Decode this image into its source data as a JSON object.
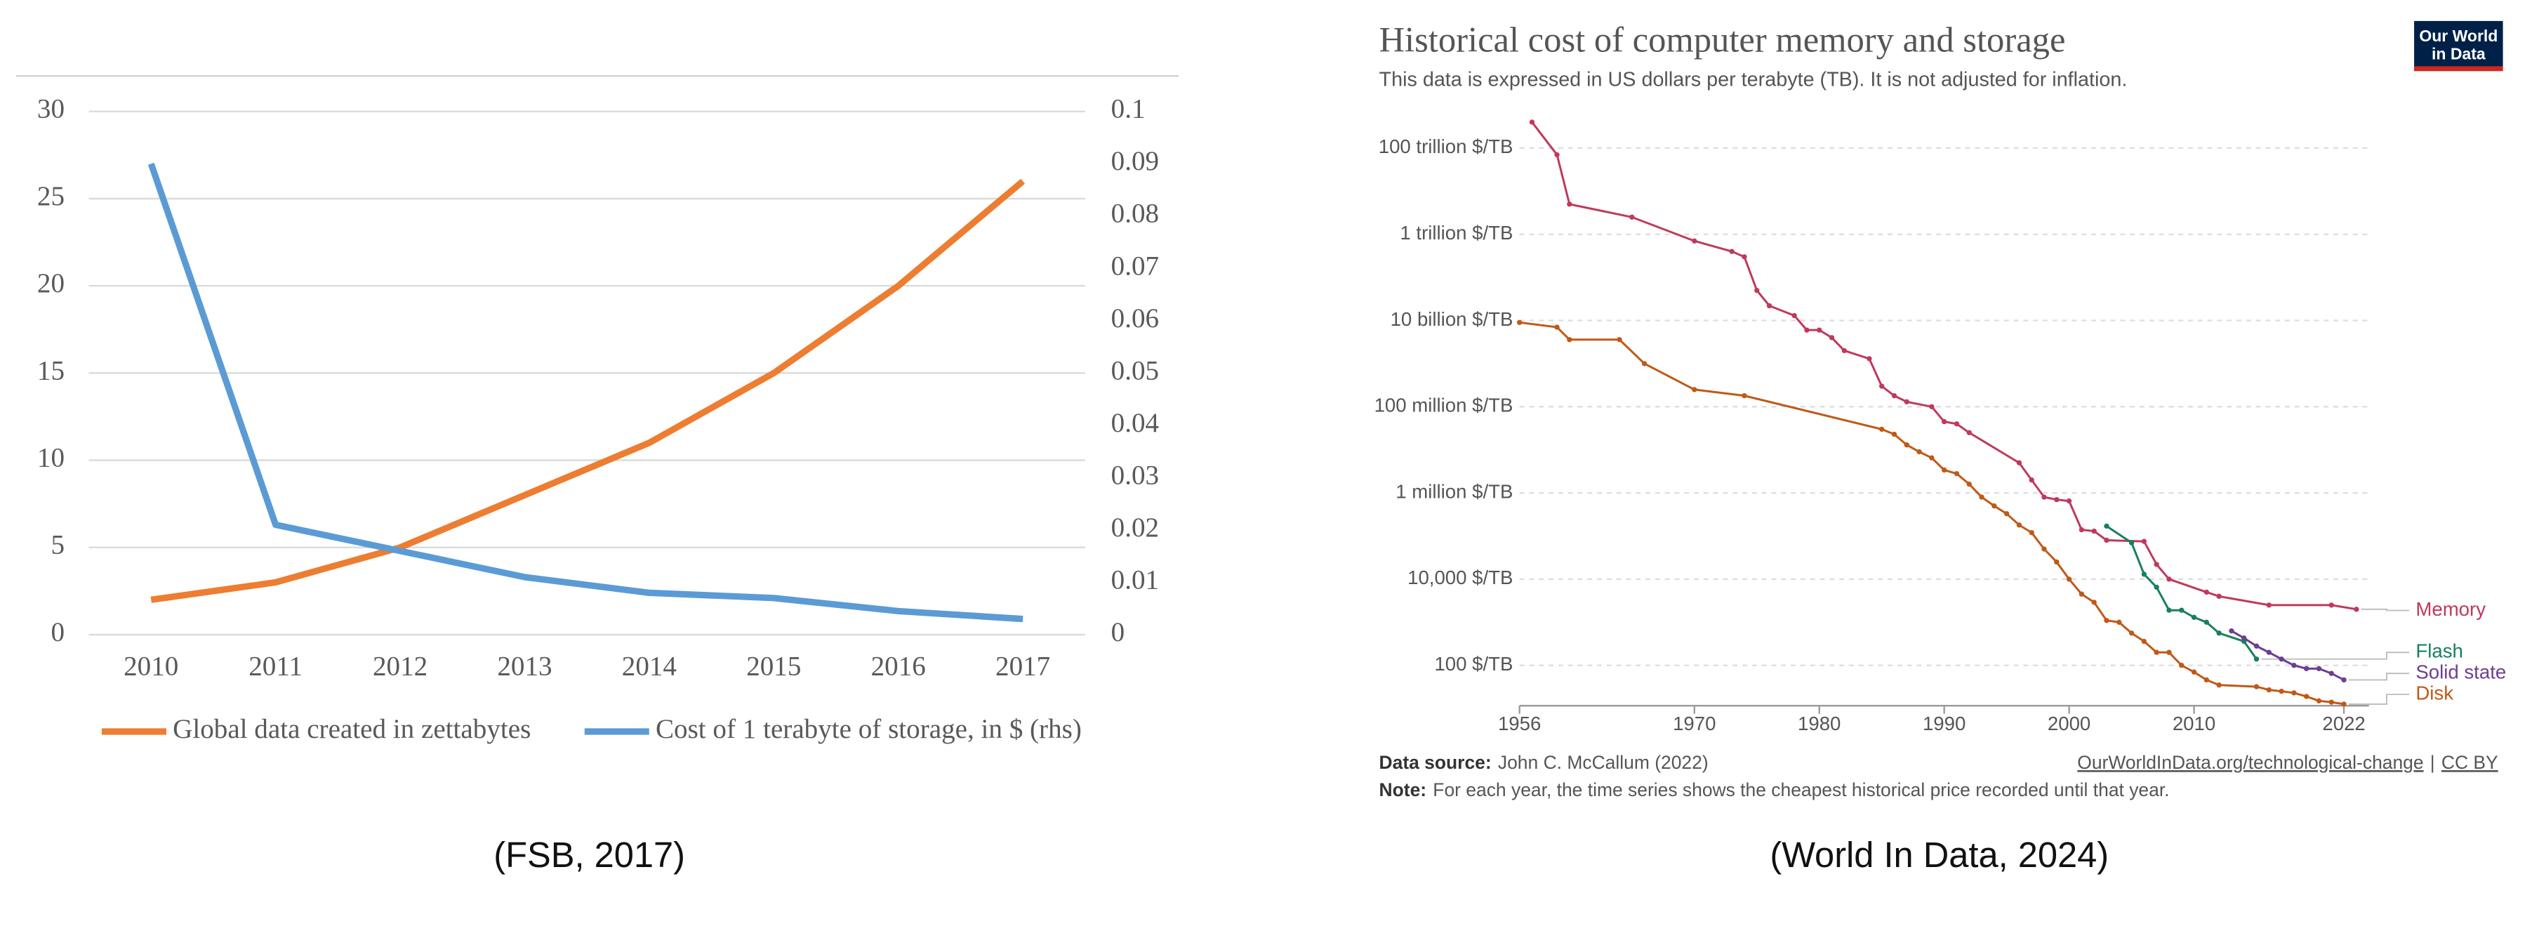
{
  "chart_data": [
    {
      "type": "line",
      "caption": "(FSB, 2017)",
      "categories": [
        "2010",
        "2011",
        "2012",
        "2013",
        "2014",
        "2015",
        "2016",
        "2017"
      ],
      "series": [
        {
          "name": "Global data created in zettabytes",
          "color": "#ed7d31",
          "values": [
            2,
            3,
            5,
            8,
            11,
            15,
            20,
            26
          ]
        },
        {
          "name": "Cost of 1 terabyte of storage, in $ (rhs)",
          "color": "#5b9bd5",
          "axis": "y2",
          "values": [
            0.09,
            0.021,
            0.016,
            0.011,
            0.008,
            0.007,
            0.0045,
            0.003
          ]
        }
      ],
      "ylim": [
        0,
        30
      ],
      "yticks": [
        0,
        5,
        10,
        15,
        20,
        25,
        30
      ],
      "y2lim": [
        0,
        0.1
      ],
      "y2ticks": [
        0,
        0.01,
        0.02,
        0.03,
        0.04,
        0.05,
        0.06,
        0.07,
        0.08,
        0.09,
        0.1
      ],
      "grid": true,
      "legend": "bottom"
    },
    {
      "type": "line",
      "title": "Historical cost of computer memory and storage",
      "subtitle": "This data is expressed in US dollars per terabyte (TB). It is not adjusted for inflation.",
      "logo": [
        "Our World",
        "in Data"
      ],
      "source_label": "Data source:",
      "source": "John C. McCallum (2022)",
      "link": "OurWorldInData.org/technological-change",
      "separator": "|",
      "license": "CC BY",
      "note_label": "Note:",
      "note": "For each year, the time series shows the cheapest historical price recorded until that year.",
      "caption": "(World In Data, 2024)",
      "log_y": true,
      "grid": true,
      "legend": "right",
      "xlim": [
        1956,
        2024
      ],
      "xticks": [
        1956,
        1970,
        1980,
        1990,
        2000,
        2010,
        2022
      ],
      "ylim": [
        10,
        1000000000000000.0
      ],
      "yticks": [
        {
          "value": 100,
          "label": "100 $/TB"
        },
        {
          "value": 10000,
          "label": "10,000 $/TB"
        },
        {
          "value": 1000000,
          "label": "1 million $/TB"
        },
        {
          "value": 100000000,
          "label": "100 million $/TB"
        },
        {
          "value": 10000000000,
          "label": "10 billion $/TB"
        },
        {
          "value": 1000000000000,
          "label": "1 trillion $/TB"
        },
        {
          "value": 100000000000000,
          "label": "100 trillion $/TB"
        }
      ],
      "series": [
        {
          "name": "Memory",
          "color": "#c0395b",
          "x": [
            1957,
            1959,
            1960,
            1965,
            1970,
            1973,
            1974,
            1975,
            1976,
            1978,
            1979,
            1980,
            1981,
            1982,
            1984,
            1985,
            1986,
            1987,
            1989,
            1990,
            1991,
            1992,
            1996,
            1997,
            1998,
            1999,
            2000,
            2001,
            2002,
            2003,
            2006,
            2007,
            2008,
            2011,
            2012,
            2016,
            2021,
            2023
          ],
          "values": [
            400000000000000.0,
            70000000000000.0,
            5000000000000.0,
            2500000000000.0,
            700000000000.0,
            400000000000.0,
            300000000000.0,
            50000000000.0,
            22000000000.0,
            13000000000.0,
            6000000000.0,
            6000000000.0,
            4000000000.0,
            2000000000.0,
            1300000000.0,
            300000000.0,
            180000000.0,
            130000000.0,
            100000000.0,
            45000000.0,
            40000000.0,
            25000000.0,
            5000000.0,
            2000000.0,
            800000.0,
            700000.0,
            650000.0,
            140000.0,
            130000.0,
            80000.0,
            75000.0,
            22000.0,
            10000.0,
            5000,
            4000,
            2500,
            2500,
            2000
          ]
        },
        {
          "name": "Flash",
          "color": "#18805f",
          "x": [
            2003,
            2005,
            2006,
            2007,
            2008,
            2009,
            2010,
            2011,
            2012,
            2014,
            2015
          ],
          "values": [
            170000,
            70000,
            13000,
            6500,
            1900,
            1900,
            1300,
            1000,
            560,
            360,
            140
          ]
        },
        {
          "name": "Solid state",
          "color": "#6d3e91",
          "x": [
            2013,
            2014,
            2015,
            2016,
            2017,
            2018,
            2019,
            2020,
            2021,
            2022
          ],
          "values": [
            630,
            430,
            280,
            200,
            140,
            100,
            84,
            84,
            65,
            46
          ]
        },
        {
          "name": "Disk",
          "color": "#c05917",
          "x": [
            1956,
            1959,
            1960,
            1964,
            1966,
            1970,
            1974,
            1985,
            1986,
            1987,
            1988,
            1989,
            1990,
            1991,
            1992,
            1993,
            1994,
            1995,
            1996,
            1997,
            1998,
            1999,
            2000,
            2001,
            2002,
            2003,
            2004,
            2005,
            2006,
            2007,
            2008,
            2009,
            2010,
            2011,
            2012,
            2015,
            2016,
            2017,
            2018,
            2019,
            2020,
            2021,
            2022
          ],
          "values": [
            9000000000.0,
            7000000000.0,
            3600000000.0,
            3600000000.0,
            1000000000.0,
            250000000.0,
            180000000.0,
            30000000.0,
            23000000.0,
            13000000.0,
            9000000.0,
            6500000.0,
            3400000.0,
            2800000.0,
            1600000.0,
            800000.0,
            500000.0,
            330000.0,
            180000.0,
            120000.0,
            50000.0,
            25000.0,
            10000.0,
            4500,
            2900,
            1100,
            1000,
            560,
            360,
            200,
            200,
            100,
            70,
            46,
            35,
            32,
            27,
            25,
            23,
            19,
            15,
            14,
            12.6
          ]
        }
      ]
    }
  ]
}
